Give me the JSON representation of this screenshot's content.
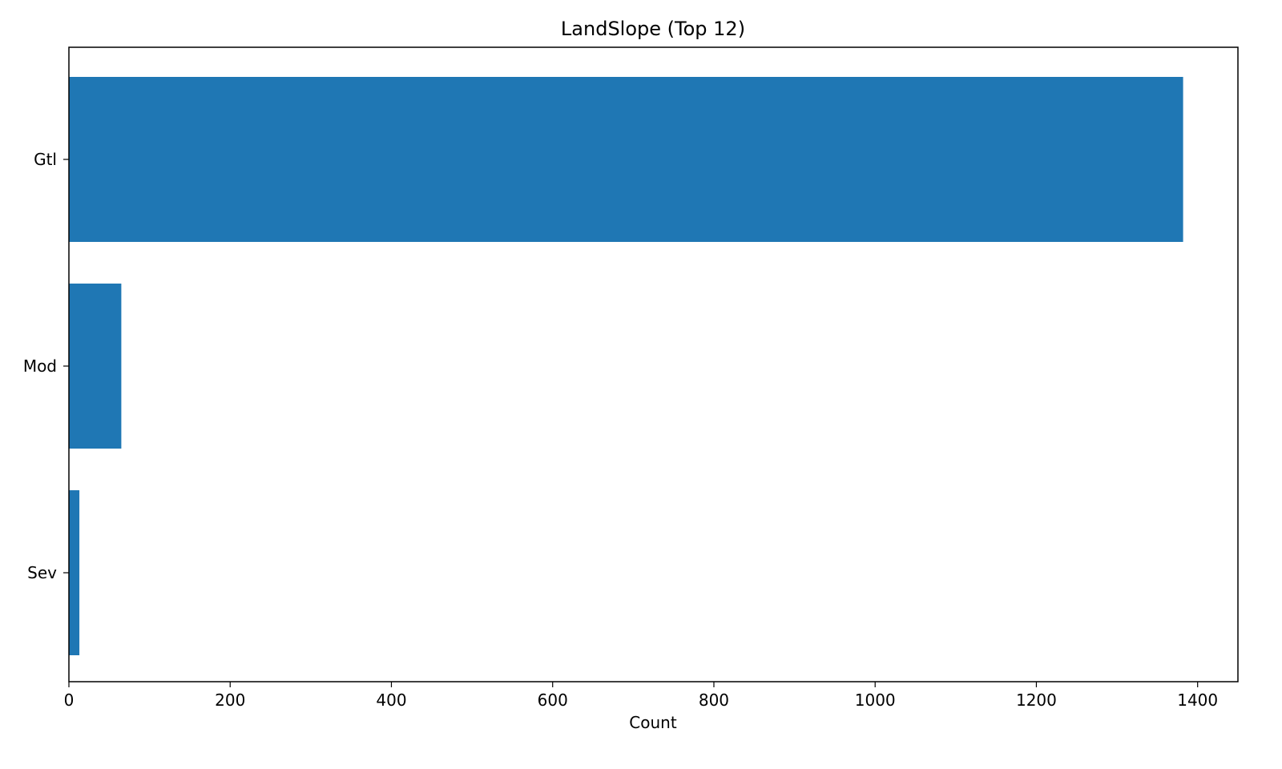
{
  "chart_data": {
    "type": "bar",
    "orientation": "horizontal",
    "title": "LandSlope (Top 12)",
    "xlabel": "Count",
    "ylabel": "",
    "categories": [
      "Gtl",
      "Mod",
      "Sev"
    ],
    "values": [
      1382,
      65,
      13
    ],
    "xlim": [
      0,
      1450
    ],
    "xticks": [
      0,
      200,
      400,
      600,
      800,
      1000,
      1200,
      1400
    ],
    "grid": false,
    "legend": "none",
    "bar_color": "#1f77b4"
  }
}
